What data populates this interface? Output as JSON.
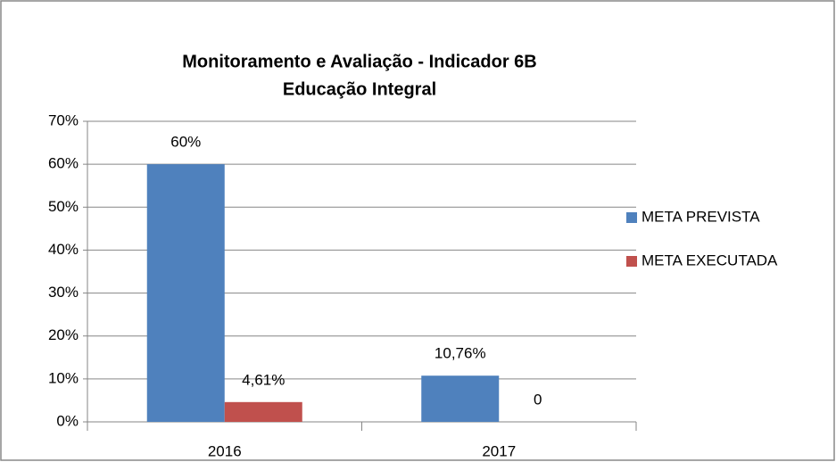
{
  "chart_data": {
    "type": "bar",
    "title": "Monitoramento e Avaliação - Indicador 6B",
    "subtitle": "Educação Integral",
    "categories": [
      "2016",
      "2017"
    ],
    "series": [
      {
        "name": "META PREVISTA",
        "color": "#4f81bd",
        "values": [
          60,
          10.76
        ],
        "value_labels": [
          "60%",
          "10,76%"
        ]
      },
      {
        "name": "META EXECUTADA",
        "color": "#c0504d",
        "values": [
          4.61,
          0
        ],
        "value_labels": [
          "4,61%",
          "0"
        ]
      }
    ],
    "ylim": [
      0,
      70
    ],
    "yticks": [
      {
        "value": 0,
        "label": "0%"
      },
      {
        "value": 10,
        "label": "10%"
      },
      {
        "value": 20,
        "label": "20%"
      },
      {
        "value": 30,
        "label": "30%"
      },
      {
        "value": 40,
        "label": "40%"
      },
      {
        "value": 50,
        "label": "50%"
      },
      {
        "value": 60,
        "label": "60%"
      },
      {
        "value": 70,
        "label": "70%"
      }
    ],
    "grid": true,
    "legend": "right"
  }
}
